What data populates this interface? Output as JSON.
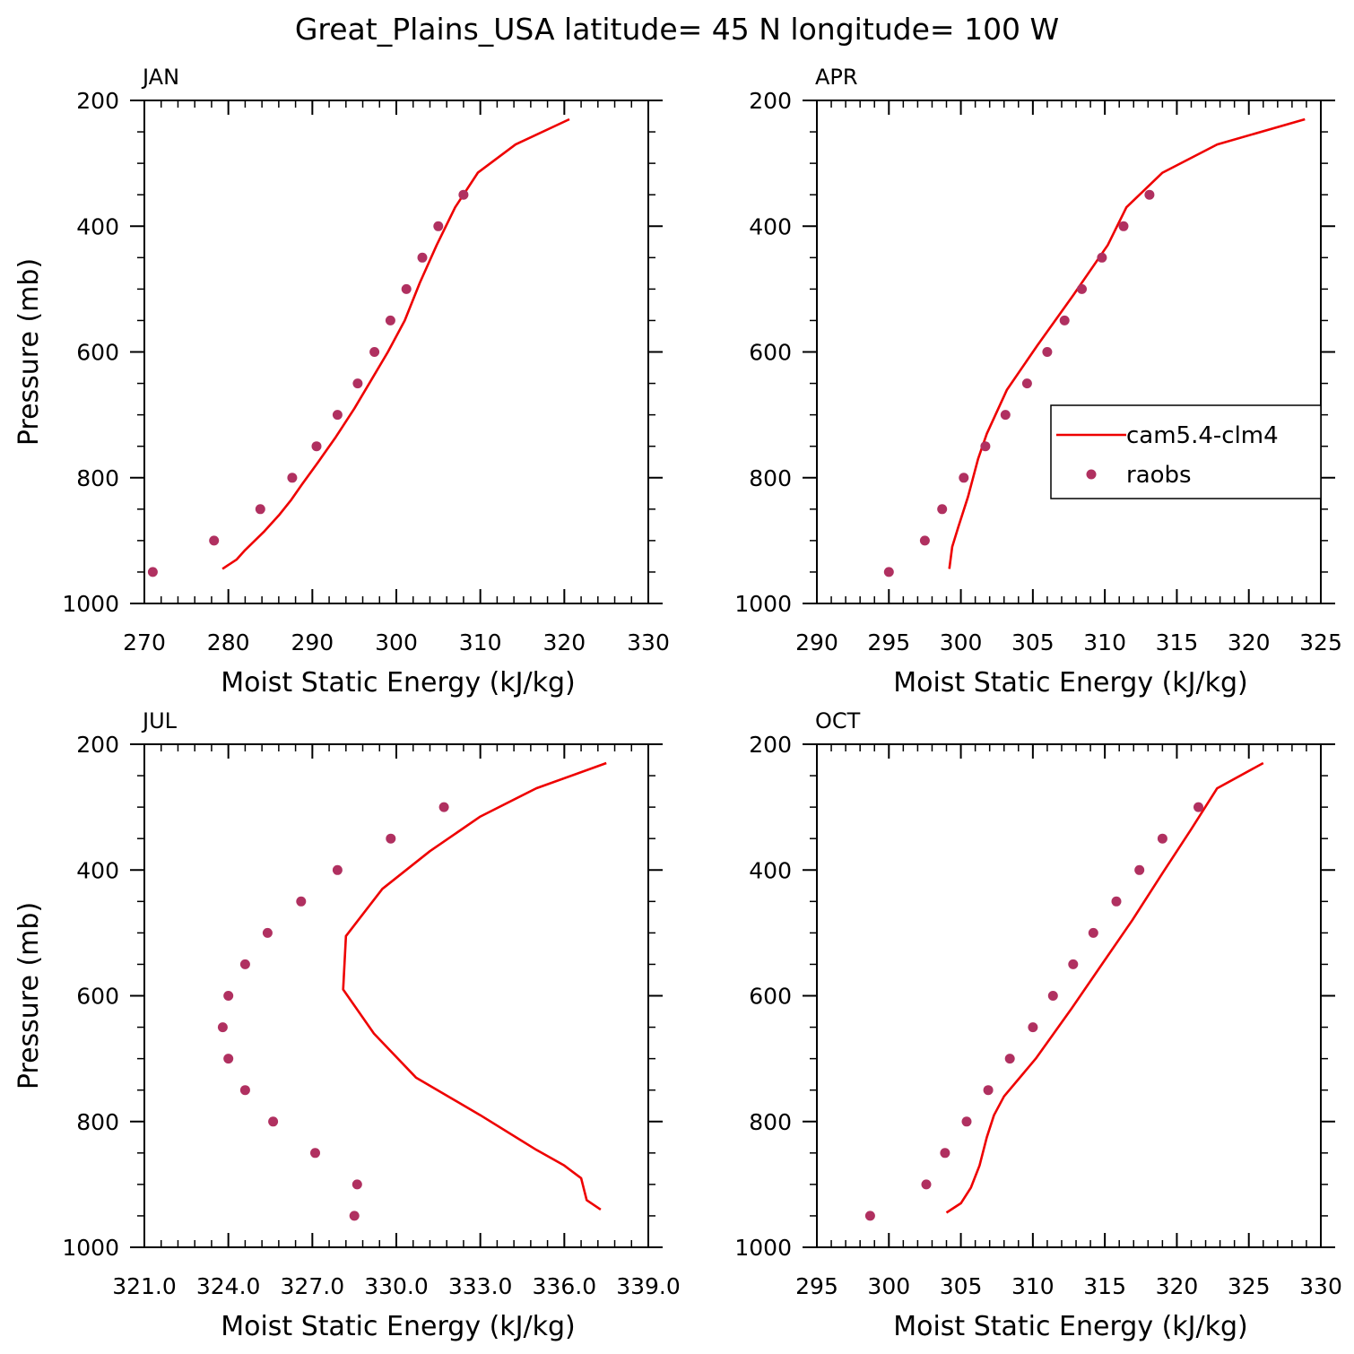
{
  "figure": {
    "title": "Great_Plains_USA  latitude= 45 N longitude= 100 W",
    "line_color": "#ee0000",
    "marker_color": "#b03060"
  },
  "legend": {
    "entries": [
      {
        "label": "cam5.4-clm4",
        "kind": "line"
      },
      {
        "label": "raobs",
        "kind": "marker"
      }
    ],
    "placement": "right-middle of APR panel"
  },
  "chart_data": [
    {
      "type": "line+scatter",
      "panel": "JAN",
      "xlabel": "Moist Static Energy (kJ/kg)",
      "ylabel": "Pressure (mb)",
      "xlim": [
        270,
        330
      ],
      "ylim": [
        1000,
        200
      ],
      "xticks": [
        270,
        280,
        290,
        300,
        310,
        320,
        330
      ],
      "xtick_labels": [
        "270",
        "280",
        "290",
        "300",
        "310",
        "320",
        "330"
      ],
      "xminor": 2,
      "yticks": [
        200,
        400,
        600,
        800,
        1000
      ],
      "ytick_labels": [
        "200",
        "400",
        "600",
        "800",
        "1000"
      ],
      "series": [
        {
          "name": "cam5.4-clm4",
          "kind": "line",
          "x": [
            279.3,
            281.0,
            282.0,
            284.3,
            286.0,
            287.5,
            288.8,
            290.7,
            292.8,
            295.0,
            297.0,
            299.0,
            301.0,
            302.8,
            304.8,
            307.0,
            309.7,
            314.2,
            320.6
          ],
          "y": [
            945,
            930,
            915,
            885,
            860,
            835,
            810,
            775,
            735,
            690,
            645,
            600,
            550,
            490,
            430,
            370,
            315,
            270,
            230
          ]
        },
        {
          "name": "raobs",
          "kind": "marker",
          "x": [
            271.0,
            278.3,
            283.8,
            287.6,
            290.5,
            293.0,
            295.4,
            297.4,
            299.3,
            301.2,
            303.1,
            305.0,
            308.0
          ],
          "y": [
            950,
            900,
            850,
            800,
            750,
            700,
            650,
            600,
            550,
            500,
            450,
            400,
            350
          ]
        }
      ]
    },
    {
      "type": "line+scatter",
      "panel": "APR",
      "xlabel": "Moist Static Energy (kJ/kg)",
      "ylabel": "",
      "xlim": [
        290,
        325
      ],
      "ylim": [
        1000,
        200
      ],
      "xticks": [
        290,
        295,
        300,
        305,
        310,
        315,
        320,
        325
      ],
      "xtick_labels": [
        "290",
        "295",
        "300",
        "305",
        "310",
        "315",
        "320",
        "325"
      ],
      "xminor": 1,
      "yticks": [
        200,
        400,
        600,
        800,
        1000
      ],
      "ytick_labels": [
        "200",
        "400",
        "600",
        "800",
        "1000"
      ],
      "series": [
        {
          "name": "cam5.4-clm4",
          "kind": "line",
          "x": [
            299.2,
            299.4,
            299.8,
            300.5,
            301.2,
            301.8,
            303.2,
            305.3,
            307.8,
            310.2,
            311.5,
            314.0,
            317.8,
            323.9
          ],
          "y": [
            945,
            910,
            880,
            830,
            770,
            730,
            660,
            590,
            510,
            430,
            370,
            315,
            270,
            230
          ]
        },
        {
          "name": "raobs",
          "kind": "marker",
          "x": [
            295.0,
            297.5,
            298.7,
            300.2,
            301.7,
            303.1,
            304.6,
            306.0,
            307.2,
            308.4,
            309.8,
            311.3,
            313.1
          ],
          "y": [
            950,
            900,
            850,
            800,
            750,
            700,
            650,
            600,
            550,
            500,
            450,
            400,
            350
          ]
        }
      ]
    },
    {
      "type": "line+scatter",
      "panel": "JUL",
      "xlabel": "Moist Static Energy (kJ/kg)",
      "ylabel": "Pressure (mb)",
      "xlim": [
        321,
        339
      ],
      "ylim": [
        1000,
        200
      ],
      "xticks": [
        321,
        324,
        327,
        330,
        333,
        336,
        339
      ],
      "xtick_labels": [
        "321.0",
        "324.0",
        "327.0",
        "330.0",
        "333.0",
        "336.0",
        "339.0"
      ],
      "xminor": 0.6,
      "yticks": [
        200,
        400,
        600,
        800,
        1000
      ],
      "ytick_labels": [
        "200",
        "400",
        "600",
        "800",
        "1000"
      ],
      "series": [
        {
          "name": "cam5.4-clm4",
          "kind": "line",
          "x": [
            337.3,
            336.8,
            336.6,
            336.0,
            335.0,
            333.0,
            330.7,
            329.2,
            328.1,
            328.2,
            329.5,
            331.2,
            333.0,
            335.0,
            337.5
          ],
          "y": [
            940,
            925,
            890,
            870,
            845,
            790,
            730,
            660,
            590,
            505,
            430,
            370,
            315,
            270,
            230
          ]
        },
        {
          "name": "raobs",
          "kind": "marker",
          "x": [
            328.5,
            328.6,
            327.1,
            325.6,
            324.6,
            324.0,
            323.8,
            324.0,
            324.6,
            325.4,
            326.6,
            327.9,
            329.8,
            331.7
          ],
          "y": [
            950,
            900,
            850,
            800,
            750,
            700,
            650,
            600,
            550,
            500,
            450,
            400,
            350,
            300
          ]
        }
      ]
    },
    {
      "type": "line+scatter",
      "panel": "OCT",
      "xlabel": "Moist Static Energy (kJ/kg)",
      "ylabel": "",
      "xlim": [
        295,
        330
      ],
      "ylim": [
        1000,
        200
      ],
      "xticks": [
        295,
        300,
        305,
        310,
        315,
        320,
        325,
        330
      ],
      "xtick_labels": [
        "295",
        "300",
        "305",
        "310",
        "315",
        "320",
        "325",
        "330"
      ],
      "xminor": 1,
      "yticks": [
        200,
        400,
        600,
        800,
        1000
      ],
      "ytick_labels": [
        "200",
        "400",
        "600",
        "800",
        "1000"
      ],
      "series": [
        {
          "name": "cam5.4-clm4",
          "kind": "line",
          "x": [
            304.0,
            305.0,
            305.7,
            306.3,
            306.8,
            307.3,
            308.0,
            310.2,
            312.7,
            314.8,
            316.9,
            319.0,
            321.0,
            322.8,
            326.0
          ],
          "y": [
            945,
            930,
            905,
            870,
            825,
            790,
            760,
            700,
            620,
            550,
            480,
            405,
            335,
            270,
            230
          ]
        },
        {
          "name": "raobs",
          "kind": "marker",
          "x": [
            298.7,
            302.6,
            303.9,
            305.4,
            306.9,
            308.4,
            310.0,
            311.4,
            312.8,
            314.2,
            315.8,
            317.4,
            319.0,
            321.5
          ],
          "y": [
            950,
            900,
            850,
            800,
            750,
            700,
            650,
            600,
            550,
            500,
            450,
            400,
            350,
            300
          ]
        }
      ]
    }
  ]
}
